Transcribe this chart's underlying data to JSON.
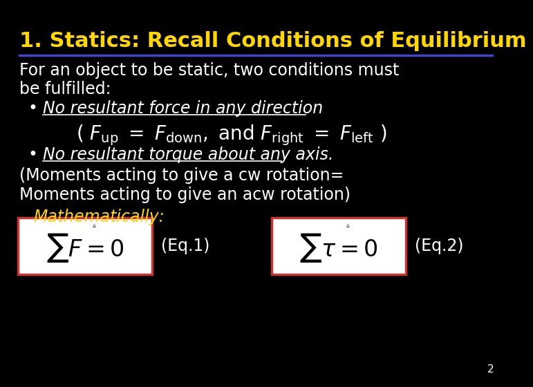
{
  "background_color": "#000000",
  "title": "1. Statics: Recall Conditions of Equilibrium",
  "title_color": "#FFD700",
  "title_fontsize": 22,
  "separator_color": "#4444CC",
  "body_color": "#FFFFFF",
  "body_fontsize": 17,
  "bullet_color": "#FFFFFF",
  "yellow_color": "#FFD700",
  "box_edge_color": "#CC3333",
  "page_number": "2"
}
